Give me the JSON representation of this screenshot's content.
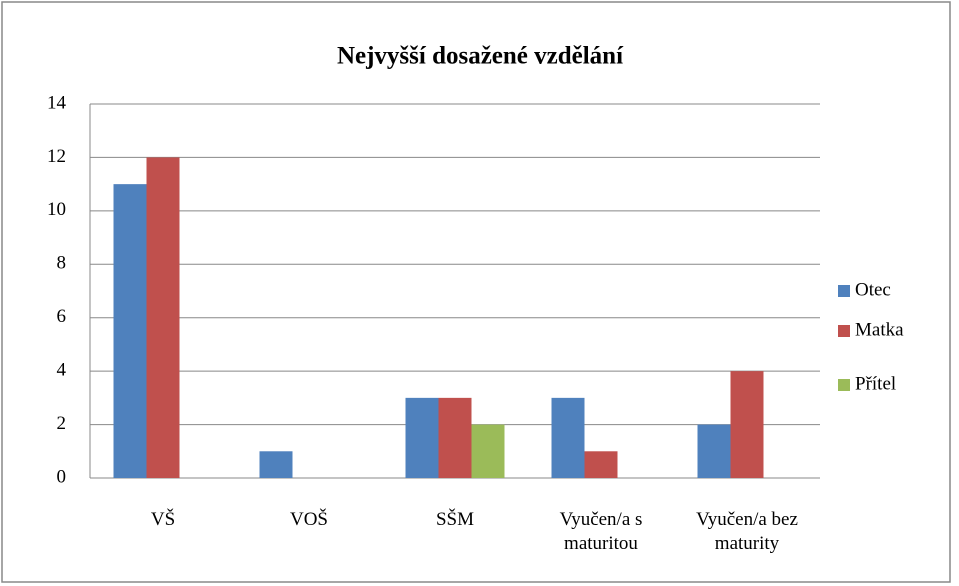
{
  "chart_data": {
    "type": "bar",
    "title": "Nejvyšší dosažené vzdělání",
    "categories": [
      "VŠ",
      "VOŠ",
      "SŠM",
      "Vyučen/a s maturitou",
      "Vyučen/a bez maturity"
    ],
    "series": [
      {
        "name": "Otec",
        "color": "#4f81bd",
        "values": [
          11,
          1,
          3,
          3,
          2
        ]
      },
      {
        "name": "Matka",
        "color": "#c0504d",
        "values": [
          12,
          0,
          3,
          1,
          4
        ]
      },
      {
        "name": "Přítel",
        "color": "#9bbb59",
        "values": [
          0,
          0,
          2,
          0,
          0
        ]
      }
    ],
    "ylim": [
      0,
      14
    ],
    "yticks": [
      0,
      2,
      4,
      6,
      8,
      10,
      12,
      14
    ],
    "grid": true,
    "legend": "right"
  }
}
